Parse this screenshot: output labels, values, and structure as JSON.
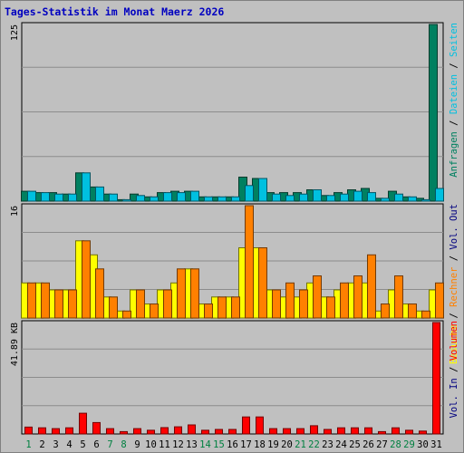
{
  "title": "Tages-Statistik im Monat Maerz 2026",
  "colors": {
    "background": "#c0c0c0",
    "title": "#0000c0",
    "anfragen": "#008060",
    "dateien": "#00c0e0",
    "besuche": "#ffff00",
    "rechner": "#ff8000",
    "volumen": "#ff0000",
    "weekday_label": "#000080",
    "weekend_label": "#008040"
  },
  "chart_data": [
    {
      "type": "bar",
      "panel": "top",
      "axis_max_label": "125",
      "ylim": [
        0,
        125
      ],
      "categories": [
        "1",
        "2",
        "3",
        "4",
        "5",
        "6",
        "7",
        "8",
        "9",
        "10",
        "11",
        "12",
        "13",
        "14",
        "15",
        "16",
        "17",
        "18",
        "19",
        "20",
        "21",
        "22",
        "23",
        "24",
        "25",
        "26",
        "27",
        "28",
        "29",
        "30",
        "31"
      ],
      "series": [
        {
          "name": "Anfragen",
          "values": [
            7,
            6,
            6,
            5,
            20,
            10,
            5,
            1,
            5,
            3,
            6,
            7,
            7,
            3,
            3,
            3,
            17,
            16,
            6,
            6,
            6,
            8,
            4,
            6,
            8,
            9,
            2,
            7,
            3,
            2,
            125
          ]
        },
        {
          "name": "Dateien",
          "values": [
            7,
            6,
            5,
            5,
            20,
            10,
            5,
            1,
            4,
            3,
            6,
            6,
            7,
            3,
            3,
            3,
            11,
            16,
            5,
            4,
            5,
            8,
            4,
            5,
            7,
            6,
            2,
            5,
            3,
            1,
            9
          ]
        }
      ]
    },
    {
      "type": "bar",
      "panel": "middle",
      "axis_max_label": "16",
      "ylim": [
        0,
        16
      ],
      "categories": [
        "1",
        "2",
        "3",
        "4",
        "5",
        "6",
        "7",
        "8",
        "9",
        "10",
        "11",
        "12",
        "13",
        "14",
        "15",
        "16",
        "17",
        "18",
        "19",
        "20",
        "21",
        "22",
        "23",
        "24",
        "25",
        "26",
        "27",
        "28",
        "29",
        "30",
        "31"
      ],
      "series": [
        {
          "name": "Besuche",
          "values": [
            5,
            5,
            4,
            4,
            11,
            9,
            3,
            1,
            4,
            2,
            4,
            5,
            7,
            2,
            3,
            3,
            10,
            10,
            4,
            3,
            3,
            5,
            3,
            4,
            5,
            5,
            1,
            4,
            2,
            1,
            4
          ]
        },
        {
          "name": "Rechner",
          "values": [
            5,
            5,
            4,
            4,
            11,
            7,
            3,
            1,
            4,
            2,
            4,
            7,
            7,
            2,
            3,
            3,
            16,
            10,
            4,
            5,
            4,
            6,
            3,
            5,
            6,
            9,
            2,
            6,
            2,
            1,
            5
          ]
        }
      ]
    },
    {
      "type": "bar",
      "panel": "bottom",
      "axis_max_label": "41.89 KB",
      "ylim": [
        0,
        41.89
      ],
      "categories": [
        "1",
        "2",
        "3",
        "4",
        "5",
        "6",
        "7",
        "8",
        "9",
        "10",
        "11",
        "12",
        "13",
        "14",
        "15",
        "16",
        "17",
        "18",
        "19",
        "20",
        "21",
        "22",
        "23",
        "24",
        "25",
        "26",
        "27",
        "28",
        "29",
        "30",
        "31"
      ],
      "series": [
        {
          "name": "Volumen",
          "values": [
            2.6,
            2.3,
            2.0,
            2.3,
            7.8,
            4.3,
            2.0,
            0.9,
            2.0,
            1.4,
            2.4,
            2.7,
            3.4,
            1.4,
            1.7,
            1.7,
            6.4,
            6.4,
            2.0,
            2.0,
            2.0,
            3.1,
            1.7,
            2.3,
            2.3,
            2.3,
            0.9,
            2.3,
            1.4,
            1.1,
            41.89
          ]
        }
      ]
    }
  ],
  "weekend_days": [
    1,
    7,
    8,
    14,
    15,
    21,
    22,
    28,
    29
  ],
  "legend_top": [
    {
      "text": "Anfragen",
      "color_key": "anfragen"
    },
    {
      "text": "Dateien",
      "color_key": "dateien"
    },
    {
      "text": "Seiten",
      "color_key": "dateien"
    }
  ],
  "legend_middle": [
    {
      "text": "Besuche",
      "color_key": "besuche"
    },
    {
      "text": "Rechner",
      "color_key": "rechner"
    },
    {
      "text": "Vol. Out",
      "color_key": "weekday_label"
    }
  ],
  "legend_bottom": [
    {
      "text": "Vol. In",
      "color_key": "weekday_label"
    },
    {
      "text": "Volumen",
      "color_key": "volumen"
    }
  ],
  "legend_separator": " / "
}
